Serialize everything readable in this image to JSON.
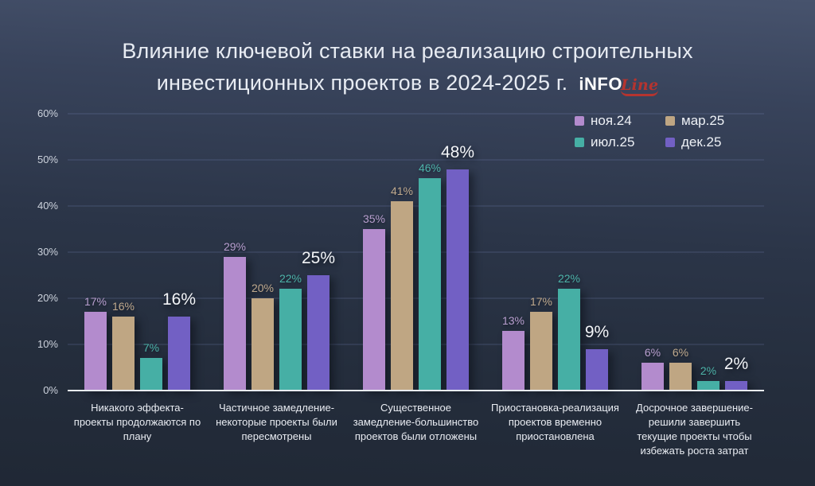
{
  "title": {
    "line1": "Влияние ключевой ставки на реализацию строительных",
    "line2": "инвестиционных проектов в 2024-2025 г.",
    "logo_text": "iNFO",
    "logo_suffix": "Line"
  },
  "colors": {
    "background_top": "#47536d",
    "background_bottom": "#202835",
    "axis_line": "#e9ecf1",
    "gridline": "rgba(122,138,189,0.33)",
    "logo_red": "#b5342f"
  },
  "chart_data": {
    "type": "bar",
    "title": "Влияние ключевой ставки на реализацию строительных инвестиционных проектов в 2024-2025 г.",
    "xlabel": "",
    "ylabel": "",
    "ylim": [
      0,
      60
    ],
    "yticks": [
      0,
      10,
      20,
      30,
      40,
      50,
      60
    ],
    "ytick_suffix": "%",
    "grid": true,
    "legend_position": "top-right",
    "categories": [
      "Никакого эффекта-проекты продолжаются по плану",
      "Частичное замедление-некоторые проекты были пересмотрены",
      "Существенное замедление-большинство проектов были отложены",
      "Приостановка-реализация проектов временно приостановлена",
      "Досрочное завершение-решили завершить текущие проекты чтобы избежать роста затрат"
    ],
    "series": [
      {
        "name": "ноя.24",
        "color": "#b38bcd",
        "label_color": "#b89fcf",
        "values": [
          17,
          29,
          35,
          13,
          6
        ]
      },
      {
        "name": "мар.25",
        "color": "#bfa683",
        "label_color": "#bfa98d",
        "values": [
          16,
          20,
          41,
          17,
          6
        ]
      },
      {
        "name": "июл.25",
        "color": "#46afa5",
        "label_color": "#4db3a9",
        "values": [
          7,
          22,
          46,
          22,
          2
        ]
      },
      {
        "name": "дек.25",
        "color": "#7260c4",
        "label_color": "#f3f5f8",
        "values": [
          16,
          25,
          48,
          9,
          2
        ],
        "emphasis": true
      }
    ]
  }
}
